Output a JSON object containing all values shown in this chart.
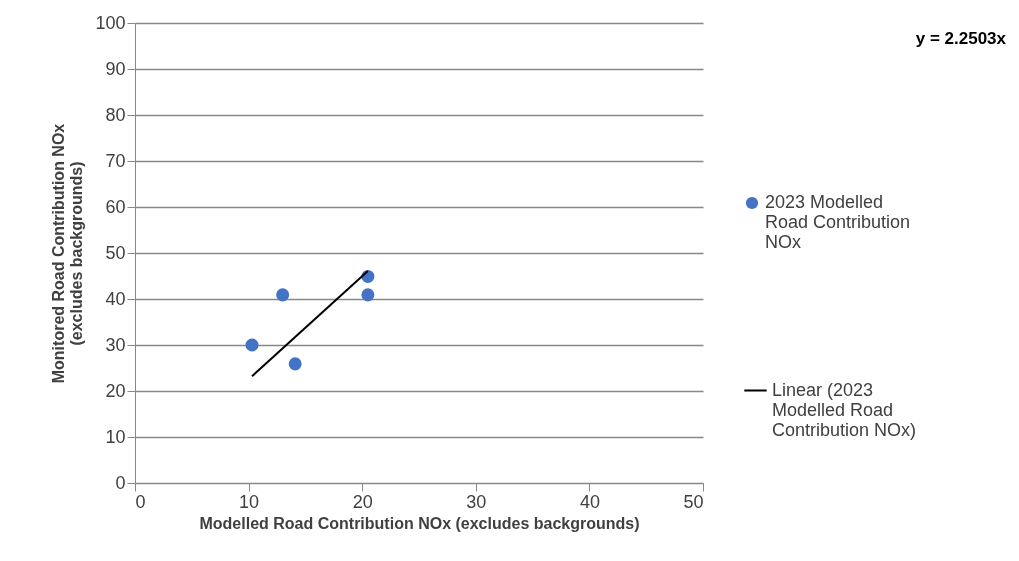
{
  "chart_data": {
    "type": "scatter",
    "xlabel": "Modelled Road Contribution NOx (excludes backgrounds)",
    "ylabel": "Monitored Road Contribution NOx (excludes backgrounds)",
    "annotations": [
      "y = 2.2503x"
    ],
    "xlim": [
      0,
      50
    ],
    "xticks": [
      0,
      10,
      20,
      30,
      40,
      50
    ],
    "ylim": [
      0,
      100
    ],
    "yticks": [
      0,
      10,
      20,
      30,
      40,
      50,
      60,
      70,
      80,
      90,
      100
    ],
    "grid": "y",
    "legend": "right",
    "series": [
      {
        "name": "2023 Modelled Road Contribution NOx",
        "color": "#4472c4",
        "marker": "circle",
        "x": [
          10.3,
          13.0,
          14.1,
          20.5,
          20.5
        ],
        "values": [
          30,
          40.9,
          25.9,
          44.9,
          40.9
        ]
      },
      {
        "name": "Linear (2023 Modelled Road Contribution NOx)",
        "type": "line",
        "color": "#000000",
        "x": [
          10.3,
          20.5
        ],
        "values": [
          23.2,
          46.1
        ]
      }
    ]
  }
}
